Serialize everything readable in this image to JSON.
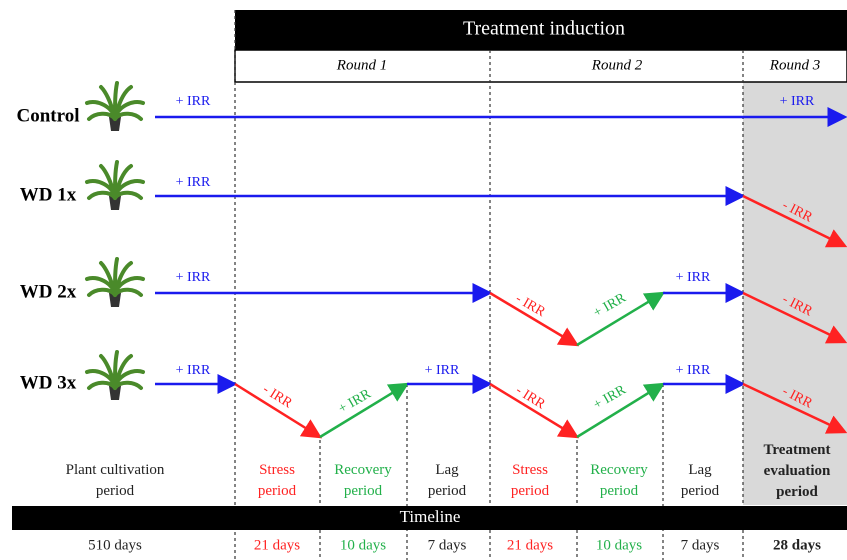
{
  "header": {
    "title": "Treatment induction",
    "rounds": [
      "Round 1",
      "Round 2",
      "Round 3"
    ]
  },
  "groups": [
    {
      "label": "Control",
      "arrows": [
        "+ IRR",
        "+ IRR"
      ]
    },
    {
      "label": "WD 1x",
      "arrows": [
        "+ IRR",
        "- IRR"
      ]
    },
    {
      "label": "WD 2x",
      "arrows": [
        "+ IRR",
        "- IRR",
        "+ IRR",
        "+ IRR",
        "- IRR"
      ]
    },
    {
      "label": "WD 3x",
      "arrows": [
        "+ IRR",
        "- IRR",
        "+ IRR",
        "+ IRR",
        "- IRR",
        "+ IRR",
        "+ IRR",
        "- IRR"
      ]
    }
  ],
  "timeline": "Timeline",
  "periods": [
    {
      "label": "Plant cultivation period",
      "duration": "510 days"
    },
    {
      "label": "Stress period",
      "duration": "21 days"
    },
    {
      "label": "Recovery period",
      "duration": "10 days"
    },
    {
      "label": "Lag period",
      "duration": "7 days"
    },
    {
      "label": "Stress period",
      "duration": "21 days"
    },
    {
      "label": "Recovery period",
      "duration": "10 days"
    },
    {
      "label": "Lag period",
      "duration": "7 days"
    },
    {
      "label": "Treatment evaluation period",
      "duration": "28 days"
    }
  ]
}
